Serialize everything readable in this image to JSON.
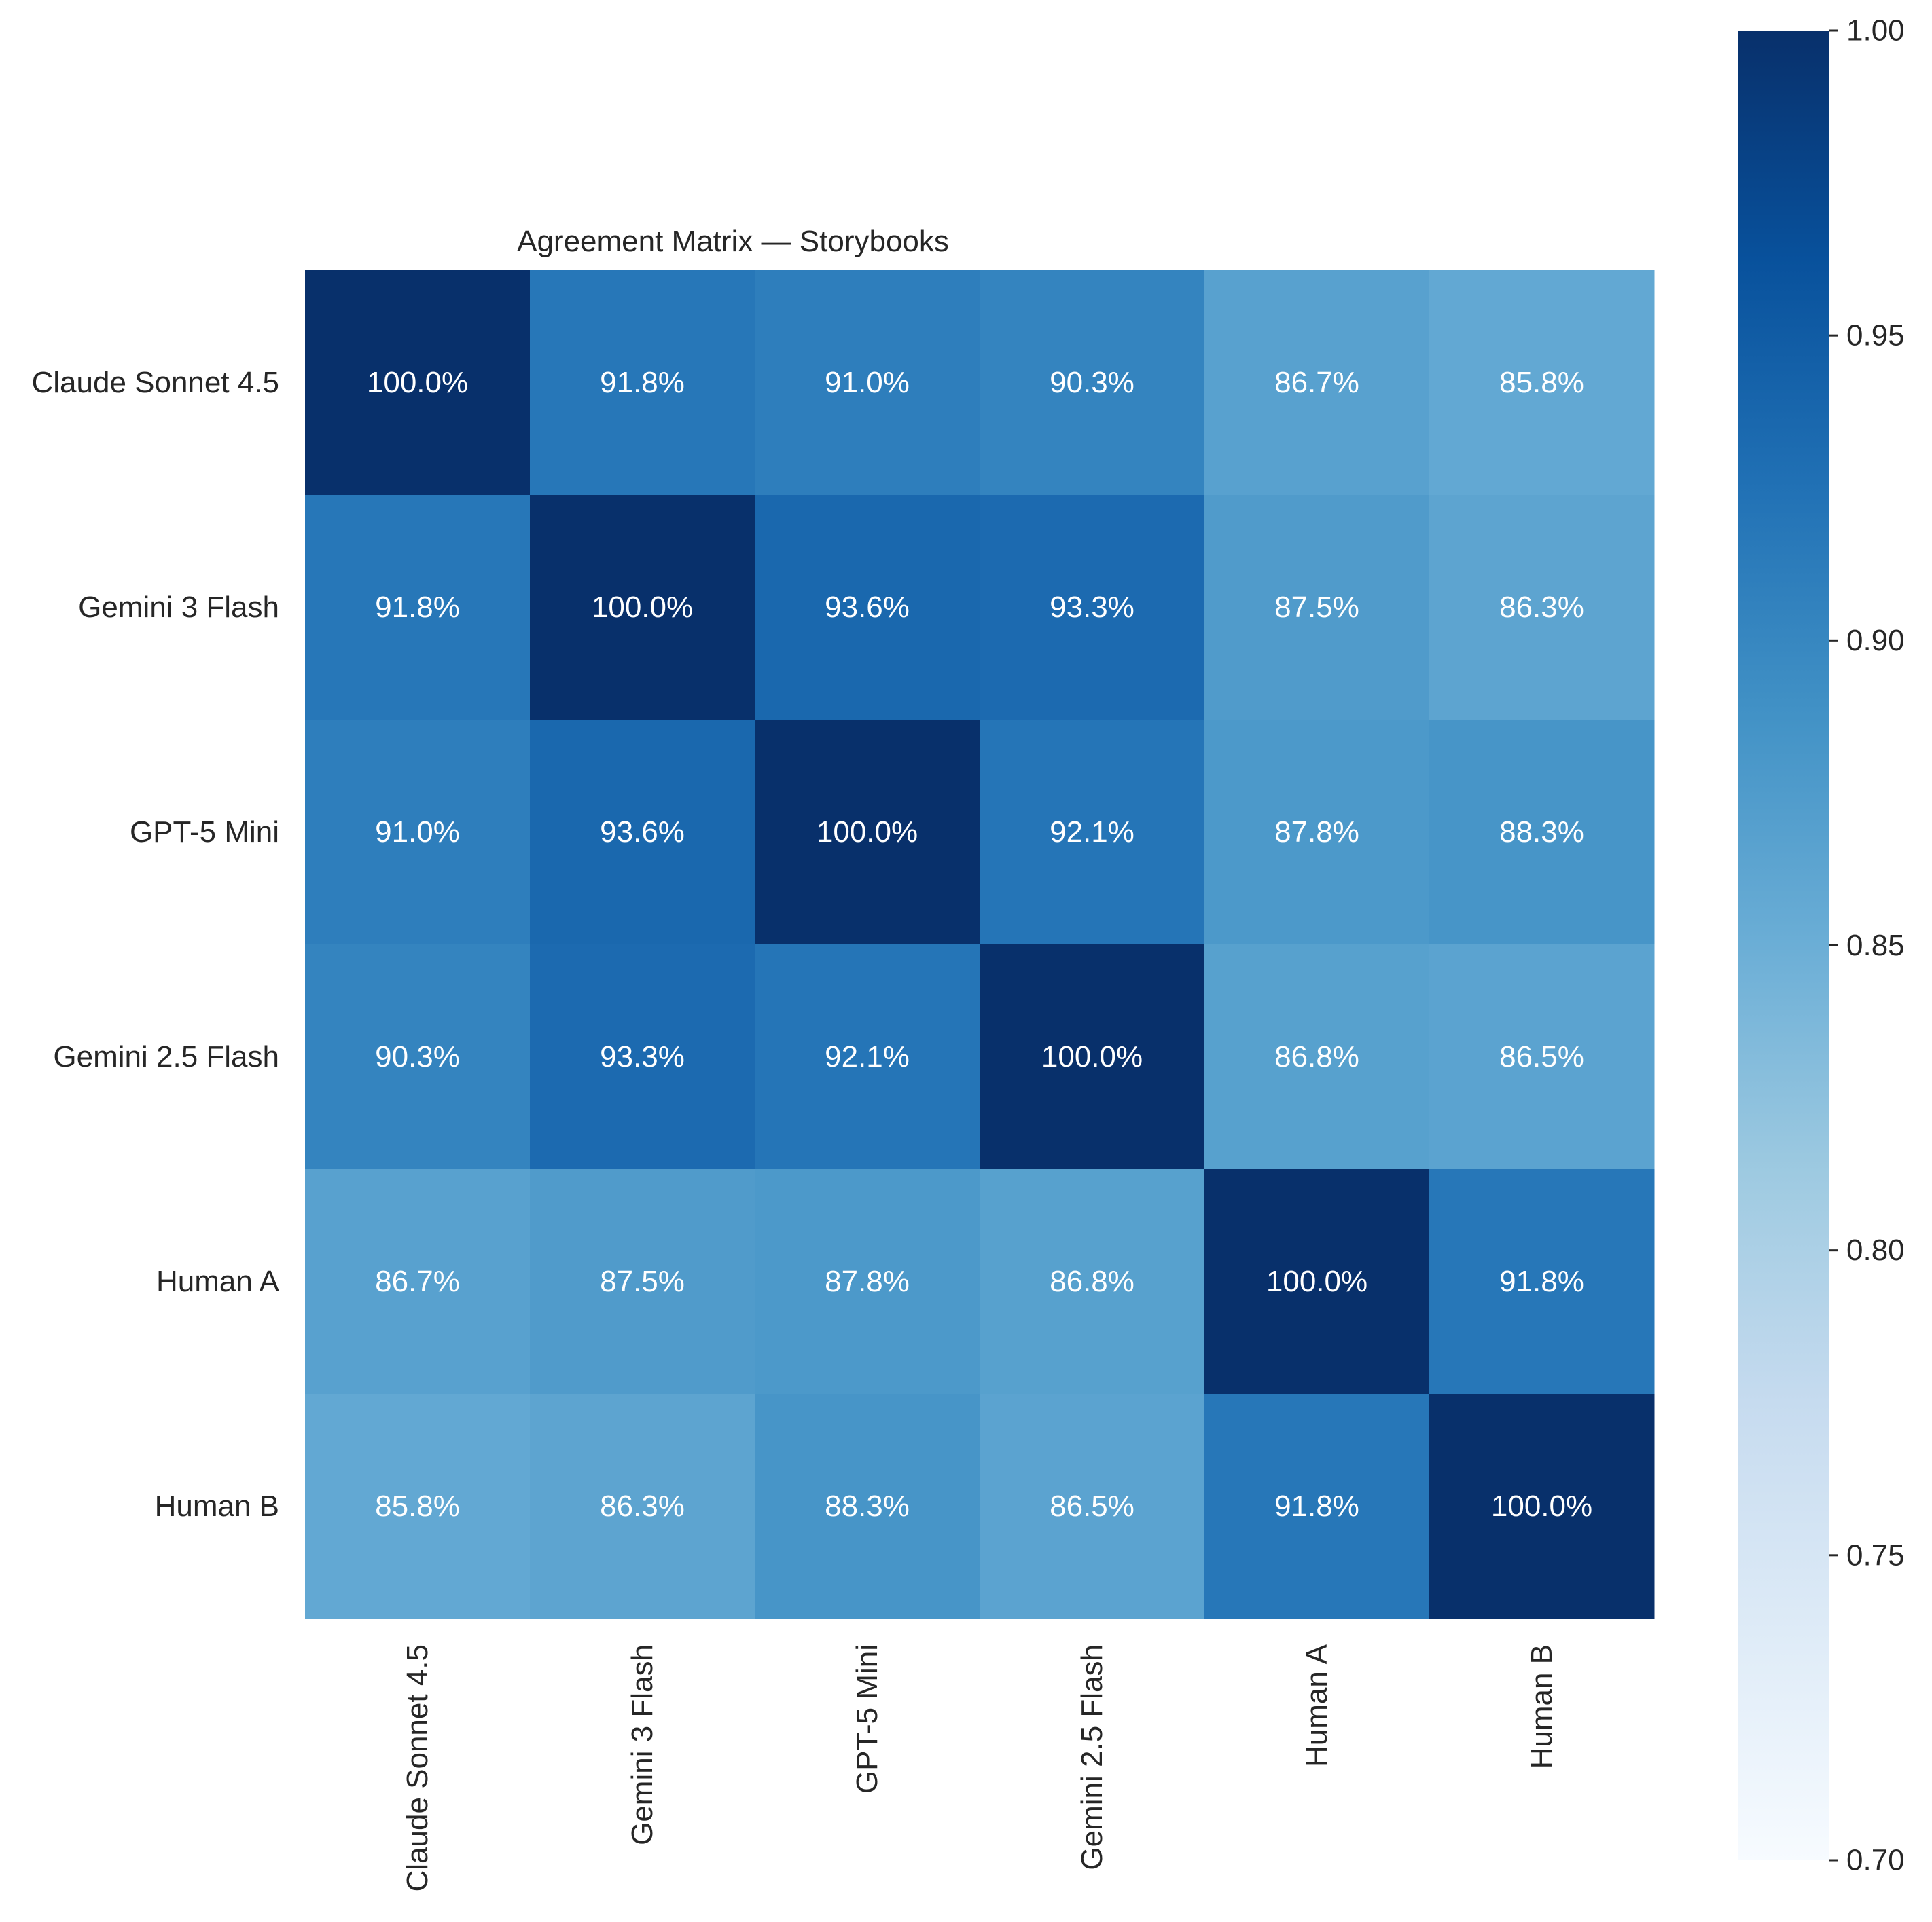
{
  "chart_data": {
    "type": "heatmap",
    "title": "Agreement Matrix — Storybooks",
    "xlabel": "",
    "ylabel": "",
    "row_labels": [
      "Claude Sonnet 4.5",
      "Gemini 3 Flash",
      "GPT-5 Mini",
      "Gemini 2.5 Flash",
      "Human A",
      "Human B"
    ],
    "col_labels": [
      "Claude Sonnet 4.5",
      "Gemini 3 Flash",
      "GPT-5 Mini",
      "Gemini 2.5 Flash",
      "Human A",
      "Human B"
    ],
    "values": [
      [
        1.0,
        0.918,
        0.91,
        0.903,
        0.867,
        0.858
      ],
      [
        0.918,
        1.0,
        0.936,
        0.933,
        0.875,
        0.863
      ],
      [
        0.91,
        0.936,
        1.0,
        0.921,
        0.878,
        0.883
      ],
      [
        0.903,
        0.933,
        0.921,
        1.0,
        0.868,
        0.865
      ],
      [
        0.867,
        0.875,
        0.878,
        0.868,
        1.0,
        0.918
      ],
      [
        0.858,
        0.863,
        0.883,
        0.865,
        0.918,
        1.0
      ]
    ],
    "cell_labels": [
      [
        "100.0%",
        "91.8%",
        "91.0%",
        "90.3%",
        "86.7%",
        "85.8%"
      ],
      [
        "91.8%",
        "100.0%",
        "93.6%",
        "93.3%",
        "87.5%",
        "86.3%"
      ],
      [
        "91.0%",
        "93.6%",
        "100.0%",
        "92.1%",
        "87.8%",
        "88.3%"
      ],
      [
        "90.3%",
        "93.3%",
        "92.1%",
        "100.0%",
        "86.8%",
        "86.5%"
      ],
      [
        "86.7%",
        "87.5%",
        "87.8%",
        "86.8%",
        "100.0%",
        "91.8%"
      ],
      [
        "85.8%",
        "86.3%",
        "88.3%",
        "86.5%",
        "91.8%",
        "100.0%"
      ]
    ],
    "colorbar": {
      "range": [
        0.7,
        1.0
      ],
      "ticks": [
        0.7,
        0.75,
        0.8,
        0.85,
        0.9,
        0.95,
        1.0
      ],
      "tick_labels": [
        "0.70",
        "0.75",
        "0.80",
        "0.85",
        "0.90",
        "0.95",
        "1.00"
      ],
      "colormap": "Blues"
    },
    "grid": false,
    "legend": "colorbar-right"
  },
  "colors": {
    "blues_scale": [
      "#f7fbff",
      "#deebf7",
      "#c6dbef",
      "#9ecae1",
      "#6baed6",
      "#4292c6",
      "#2171b5",
      "#08519c",
      "#08306b"
    ],
    "text": "#262626",
    "cell_text": "#ffffff"
  }
}
